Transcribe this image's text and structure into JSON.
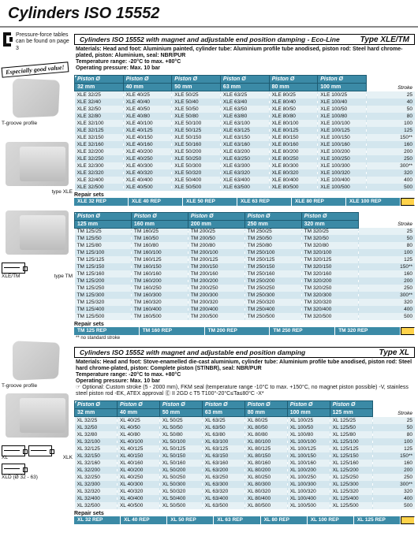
{
  "page": {
    "title": "Cylinders ISO 15552"
  },
  "gutter": {
    "pfNote": "Pressure-force tables can be found on page 3",
    "banner": "Especially good value!",
    "labels": {
      "tgroove": "T-groove profile",
      "typeXLE": "type XLE",
      "typeTM": "type TM",
      "xle_tm": "XLE/TM",
      "xl": "XL",
      "xlk": "XLK",
      "xld": "XLD (Ø 32 - 63)"
    }
  },
  "section1": {
    "title": "Cylinders ISO 15552 with magnet and adjustable end position damping - Eco-Line",
    "type": "Type XLE/TM",
    "desc1": "Materials: Head and foot: Aluminium painted, cylinder tube: Aluminium profile tube anodised, piston rod: Steel hard chrome-plated, piston: Aluminium, seal: NBR/PUR",
    "desc2": "Temperature range: -20°C to max. +80°C",
    "desc3": "Operating pressure: Max. 10 bar",
    "headerLabel": "Piston Ø",
    "strokeLabel": "Stroke",
    "diams1": [
      "32 mm",
      "40 mm",
      "50 mm",
      "63 mm",
      "80 mm",
      "100 mm"
    ],
    "rows1": [
      {
        "c": [
          "XLE 32/25",
          "XLE 40/25",
          "XLE 50/25",
          "XLE 63/25",
          "XLE 80/25",
          "XLE 100/25"
        ],
        "s": "25"
      },
      {
        "c": [
          "XLE 32/40",
          "XLE 40/40",
          "XLE 50/40",
          "XLE 63/40",
          "XLE 80/40",
          "XLE 100/40"
        ],
        "s": "40"
      },
      {
        "c": [
          "XLE 32/50",
          "XLE 40/50",
          "XLE 50/50",
          "XLE 63/50",
          "XLE 80/50",
          "XLE 100/50"
        ],
        "s": "50"
      },
      {
        "c": [
          "XLE 32/80",
          "XLE 40/80",
          "XLE 50/80",
          "XLE 63/80",
          "XLE 80/80",
          "XLE 100/80"
        ],
        "s": "80"
      },
      {
        "c": [
          "XLE 32/100",
          "XLE 40/100",
          "XLE 50/100",
          "XLE 63/100",
          "XLE 80/100",
          "XLE 100/100"
        ],
        "s": "100"
      },
      {
        "c": [
          "XLE 32/125",
          "XLE 40/125",
          "XLE 50/125",
          "XLE 63/125",
          "XLE 80/125",
          "XLE 100/125"
        ],
        "s": "125"
      },
      {
        "c": [
          "XLE 32/150",
          "XLE 40/150",
          "XLE 50/150",
          "XLE 63/150",
          "XLE 80/150",
          "XLE 100/150"
        ],
        "s": "150**"
      },
      {
        "c": [
          "XLE 32/160",
          "XLE 40/160",
          "XLE 50/160",
          "XLE 63/160",
          "XLE 80/160",
          "XLE 100/160"
        ],
        "s": "160"
      },
      {
        "c": [
          "XLE 32/200",
          "XLE 40/200",
          "XLE 50/200",
          "XLE 63/200",
          "XLE 80/200",
          "XLE 100/200"
        ],
        "s": "200"
      },
      {
        "c": [
          "XLE 32/250",
          "XLE 40/250",
          "XLE 50/250",
          "XLE 63/250",
          "XLE 80/250",
          "XLE 100/250"
        ],
        "s": "250"
      },
      {
        "c": [
          "XLE 32/300",
          "XLE 40/300",
          "XLE 50/300",
          "XLE 63/300",
          "XLE 80/300",
          "XLE 100/300"
        ],
        "s": "300**"
      },
      {
        "c": [
          "XLE 32/320",
          "XLE 40/320",
          "XLE 50/320",
          "XLE 63/320",
          "XLE 80/320",
          "XLE 100/320"
        ],
        "s": "320"
      },
      {
        "c": [
          "XLE 32/400",
          "XLE 40/400",
          "XLE 50/400",
          "XLE 63/400",
          "XLE 80/400",
          "XLE 100/400"
        ],
        "s": "400"
      },
      {
        "c": [
          "XLE 32/500",
          "XLE 40/500",
          "XLE 50/500",
          "XLE 63/500",
          "XLE 80/500",
          "XLE 100/500"
        ],
        "s": "500"
      }
    ],
    "repairLabel": "Repair sets",
    "repair1": [
      "XLE 32 REP",
      "XLE 40 REP",
      "XLE 50 REP",
      "XLE 63 REP",
      "XLE 80 REP",
      "XLE 100 REP"
    ],
    "diams2": [
      "125 mm",
      "160 mm",
      "200 mm",
      "250 mm",
      "320 mm"
    ],
    "rows2": [
      {
        "c": [
          "TM 125/25",
          "TM 160/25",
          "TM 200/25",
          "TM 250/25",
          "TM 320/25"
        ],
        "s": "25"
      },
      {
        "c": [
          "TM 125/50",
          "TM 160/50",
          "TM 200/50",
          "TM 250/50",
          "TM 320/50"
        ],
        "s": "50"
      },
      {
        "c": [
          "TM 125/80",
          "TM 160/80",
          "TM 200/80",
          "TM 250/80",
          "TM 320/80"
        ],
        "s": "80"
      },
      {
        "c": [
          "TM 125/100",
          "TM 160/100",
          "TM 200/100",
          "TM 250/100",
          "TM 320/100"
        ],
        "s": "100"
      },
      {
        "c": [
          "TM 125/125",
          "TM 160/125",
          "TM 200/125",
          "TM 250/125",
          "TM 320/125"
        ],
        "s": "125"
      },
      {
        "c": [
          "TM 125/150",
          "TM 160/150",
          "TM 200/150",
          "TM 250/150",
          "TM 320/150"
        ],
        "s": "150**"
      },
      {
        "c": [
          "TM 125/160",
          "TM 160/160",
          "TM 200/160",
          "TM 250/160",
          "TM 320/160"
        ],
        "s": "160"
      },
      {
        "c": [
          "TM 125/200",
          "TM 160/200",
          "TM 200/200",
          "TM 250/200",
          "TM 320/200"
        ],
        "s": "200"
      },
      {
        "c": [
          "TM 125/250",
          "TM 160/250",
          "TM 200/250",
          "TM 250/250",
          "TM 320/250"
        ],
        "s": "250"
      },
      {
        "c": [
          "TM 125/300",
          "TM 160/300",
          "TM 200/300",
          "TM 250/300",
          "TM 320/300"
        ],
        "s": "300**"
      },
      {
        "c": [
          "TM 125/320",
          "TM 160/320",
          "TM 200/320",
          "TM 250/320",
          "TM 320/320"
        ],
        "s": "320"
      },
      {
        "c": [
          "TM 125/400",
          "TM 160/400",
          "TM 200/400",
          "TM 250/400",
          "TM 320/400"
        ],
        "s": "400"
      },
      {
        "c": [
          "TM 125/500",
          "TM 160/500",
          "TM 200/500",
          "TM 250/500",
          "TM 320/500"
        ],
        "s": "500"
      }
    ],
    "repair2": [
      "TM 125 REP",
      "TM 160 REP",
      "TM 200 REP",
      "TM 250 REP",
      "TM 320 REP"
    ],
    "footnote": "** no standard stroke"
  },
  "section2": {
    "title": "Cylinders ISO 15552 with magnet and adjustable end position damping",
    "type": "Type XL",
    "desc1": "Materials: Head and foot: Stove-enamelled die-cast aluminium, cylinder tube: Aluminium profile tube anodised, piston rod: Steel hard chrome-plated, piston: Complete piston (ST/NBR), seal: NBR/PUR",
    "desc2": "Temperature range: -20°C to max. +80°C",
    "desc3": "Operating pressure: Max. 10 bar",
    "desc4": "☞ Optional: Custom stroke (5 - 2000 mm), FKM seal (temperature range -10°C to max. +150°C, no magnet piston possible) -V, stainless steel piston rod -EK, ATEX approval Ⓔ II 2GD c T5 T100°-20°C≤Ta≤80°C -X*",
    "headerLabel": "Piston Ø",
    "strokeLabel": "Stroke",
    "diams": [
      "32 mm",
      "40 mm",
      "50 mm",
      "63 mm",
      "80 mm",
      "100 mm",
      "125 mm"
    ],
    "rows": [
      {
        "c": [
          "XL 32/25",
          "XL 40/25",
          "XL 50/25",
          "XL 63/25",
          "XL 80/25",
          "XL 100/25",
          "XL 125/25"
        ],
        "s": "25"
      },
      {
        "c": [
          "XL 32/50",
          "XL 40/50",
          "XL 50/50",
          "XL 63/50",
          "XL 80/50",
          "XL 100/50",
          "XL 125/50"
        ],
        "s": "50"
      },
      {
        "c": [
          "XL 32/80",
          "XL 40/80",
          "XL 50/80",
          "XL 63/80",
          "XL 80/80",
          "XL 100/80",
          "XL 125/80"
        ],
        "s": "80"
      },
      {
        "c": [
          "XL 32/100",
          "XL 40/100",
          "XL 50/100",
          "XL 63/100",
          "XL 80/100",
          "XL 100/100",
          "XL 125/100"
        ],
        "s": "100"
      },
      {
        "c": [
          "XL 32/125",
          "XL 40/125",
          "XL 50/125",
          "XL 63/125",
          "XL 80/125",
          "XL 100/125",
          "XL 125/125"
        ],
        "s": "125"
      },
      {
        "c": [
          "XL 32/150",
          "XL 40/150",
          "XL 50/150",
          "XL 63/150",
          "XL 80/150",
          "XL 100/150",
          "XL 125/150"
        ],
        "s": "150**"
      },
      {
        "c": [
          "XL 32/160",
          "XL 40/160",
          "XL 50/160",
          "XL 63/160",
          "XL 80/160",
          "XL 100/160",
          "XL 125/160"
        ],
        "s": "160"
      },
      {
        "c": [
          "XL 32/200",
          "XL 40/200",
          "XL 50/200",
          "XL 63/200",
          "XL 80/200",
          "XL 100/200",
          "XL 125/200"
        ],
        "s": "200"
      },
      {
        "c": [
          "XL 32/250",
          "XL 40/250",
          "XL 50/250",
          "XL 63/250",
          "XL 80/250",
          "XL 100/250",
          "XL 125/250"
        ],
        "s": "250"
      },
      {
        "c": [
          "XL 32/300",
          "XL 40/300",
          "XL 50/300",
          "XL 63/300",
          "XL 80/300",
          "XL 100/300",
          "XL 125/300"
        ],
        "s": "300**"
      },
      {
        "c": [
          "XL 32/320",
          "XL 40/320",
          "XL 50/320",
          "XL 63/320",
          "XL 80/320",
          "XL 100/320",
          "XL 125/320"
        ],
        "s": "320"
      },
      {
        "c": [
          "XL 32/400",
          "XL 40/400",
          "XL 50/400",
          "XL 63/400",
          "XL 80/400",
          "XL 100/400",
          "XL 125/400"
        ],
        "s": "400"
      },
      {
        "c": [
          "XL 32/500",
          "XL 40/500",
          "XL 50/500",
          "XL 63/500",
          "XL 80/500",
          "XL 100/500",
          "XL 125/500"
        ],
        "s": "500"
      }
    ],
    "repairLabel": "Repair sets",
    "repair": [
      "XL 32 REP",
      "XL 40 REP",
      "XL 50 REP",
      "XL 63 REP",
      "XL 80 REP",
      "XL 100 REP",
      "XL 125 REP"
    ]
  },
  "style": {
    "header_bg": "#3b8aa6",
    "row_odd": "#e6f1f5",
    "row_even": "#d3e6ee"
  }
}
